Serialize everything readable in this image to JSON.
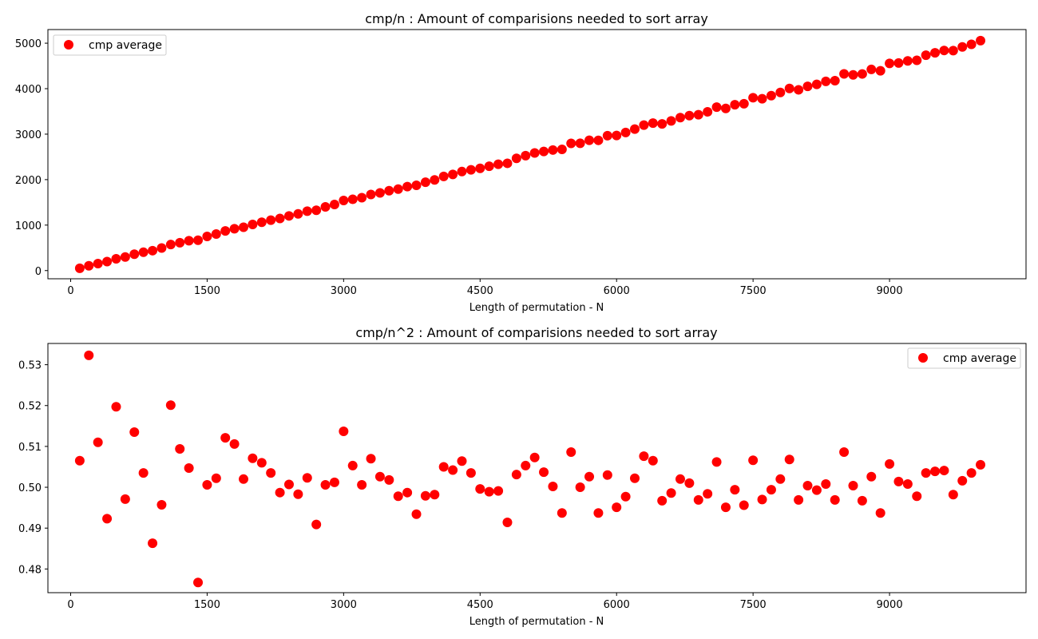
{
  "chart_data": [
    {
      "type": "scatter",
      "title": "cmp/n : Amount of comparisions needed to sort array",
      "xlabel": "Length of permutation - N",
      "ylabel": "",
      "xlim": [
        -250,
        10500
      ],
      "ylim": [
        -180,
        5300
      ],
      "xticks": [
        0,
        1500,
        3000,
        4500,
        6000,
        7500,
        9000
      ],
      "yticks": [
        0,
        1000,
        2000,
        3000,
        4000,
        5000
      ],
      "legend": "upper-left",
      "marker_color": "#ff0000",
      "series": [
        {
          "name": "cmp average",
          "x": [
            100,
            200,
            300,
            400,
            500,
            600,
            700,
            800,
            900,
            1000,
            1100,
            1200,
            1300,
            1400,
            1500,
            1600,
            1700,
            1800,
            1900,
            2000,
            2100,
            2200,
            2300,
            2400,
            2500,
            2600,
            2700,
            2800,
            2900,
            3000,
            3100,
            3200,
            3300,
            3400,
            3500,
            3600,
            3700,
            3800,
            3900,
            4000,
            4100,
            4200,
            4300,
            4400,
            4500,
            4600,
            4700,
            4800,
            4900,
            5000,
            5100,
            5200,
            5300,
            5400,
            5500,
            5600,
            5700,
            5800,
            5900,
            6000,
            6100,
            6200,
            6300,
            6400,
            6500,
            6600,
            6700,
            6800,
            6900,
            7000,
            7100,
            7200,
            7300,
            7400,
            7500,
            7600,
            7700,
            7800,
            7900,
            8000,
            8100,
            8200,
            8300,
            8400,
            8500,
            8600,
            8700,
            8800,
            8900,
            9000,
            9100,
            9200,
            9300,
            9400,
            9500,
            9600,
            9700,
            9800,
            9900,
            10000
          ],
          "y": [
            51,
            106,
            153,
            197,
            260,
            298,
            360,
            403,
            438,
            496,
            572,
            613,
            657,
            667,
            751,
            803,
            871,
            919,
            953,
            1014,
            1063,
            1108,
            1147,
            1202,
            1246,
            1306,
            1326,
            1401,
            1453,
            1541,
            1567,
            1602,
            1673,
            1709,
            1757,
            1792,
            1847,
            1875,
            1942,
            1993,
            2071,
            2114,
            2177,
            2215,
            2248,
            2295,
            2338,
            2359,
            2467,
            2527,
            2587,
            2619,
            2651,
            2666,
            2797,
            2800,
            2865,
            2864,
            2966,
            2970,
            3036,
            3111,
            3199,
            3242,
            3226,
            3291,
            3363,
            3407,
            3427,
            3490,
            3594,
            3565,
            3646,
            3669,
            3800,
            3778,
            3846,
            3916,
            4005,
            3975,
            4050,
            4094,
            4160,
            4175,
            4325,
            4303,
            4324,
            4423,
            4393,
            4555,
            4564,
            4610,
            4624,
            4735,
            4788,
            4840,
            4837,
            4918,
            4975,
            5056
          ]
        }
      ]
    },
    {
      "type": "scatter",
      "title": "cmp/n^2 : Amount of comparisions needed to sort array",
      "xlabel": "Length of permutation - N",
      "ylabel": "",
      "xlim": [
        -250,
        10500
      ],
      "ylim": [
        0.4742,
        0.5352
      ],
      "xticks": [
        0,
        1500,
        3000,
        4500,
        6000,
        7500,
        9000
      ],
      "yticks": [
        0.48,
        0.49,
        0.5,
        0.51,
        0.52,
        0.53
      ],
      "legend": "upper-right",
      "marker_color": "#ff0000",
      "series": [
        {
          "name": "cmp average",
          "x": [
            100,
            200,
            300,
            400,
            500,
            600,
            700,
            800,
            900,
            1000,
            1100,
            1200,
            1300,
            1400,
            1500,
            1600,
            1700,
            1800,
            1900,
            2000,
            2100,
            2200,
            2300,
            2400,
            2500,
            2600,
            2700,
            2800,
            2900,
            3000,
            3100,
            3200,
            3300,
            3400,
            3500,
            3600,
            3700,
            3800,
            3900,
            4000,
            4100,
            4200,
            4300,
            4400,
            4500,
            4600,
            4700,
            4800,
            4900,
            5000,
            5100,
            5200,
            5300,
            5400,
            5500,
            5600,
            5700,
            5800,
            5900,
            6000,
            6100,
            6200,
            6300,
            6400,
            6500,
            6600,
            6700,
            6800,
            6900,
            7000,
            7100,
            7200,
            7300,
            7400,
            7500,
            7600,
            7700,
            7800,
            7900,
            8000,
            8100,
            8200,
            8300,
            8400,
            8500,
            8600,
            8700,
            8800,
            8900,
            9000,
            9100,
            9200,
            9300,
            9400,
            9500,
            9600,
            9700,
            9800,
            9900,
            10000
          ],
          "y": [
            0.5065,
            0.5323,
            0.511,
            0.4923,
            0.5197,
            0.4971,
            0.5135,
            0.5035,
            0.4863,
            0.4957,
            0.5201,
            0.5094,
            0.5047,
            0.4767,
            0.5006,
            0.5022,
            0.5121,
            0.5106,
            0.502,
            0.5071,
            0.506,
            0.5035,
            0.4987,
            0.5007,
            0.4983,
            0.5023,
            0.4909,
            0.5006,
            0.5012,
            0.5137,
            0.5053,
            0.5006,
            0.507,
            0.5026,
            0.5018,
            0.4978,
            0.4987,
            0.4934,
            0.4979,
            0.4982,
            0.505,
            0.5042,
            0.5064,
            0.5035,
            0.4996,
            0.4989,
            0.4991,
            0.4914,
            0.5031,
            0.5053,
            0.5073,
            0.5037,
            0.5002,
            0.4937,
            0.5086,
            0.5,
            0.5026,
            0.4937,
            0.503,
            0.4951,
            0.4977,
            0.5022,
            0.5076,
            0.5065,
            0.4967,
            0.4986,
            0.502,
            0.501,
            0.4969,
            0.4984,
            0.5062,
            0.4951,
            0.4994,
            0.4956,
            0.5066,
            0.497,
            0.4994,
            0.502,
            0.5068,
            0.4969,
            0.5004,
            0.4993,
            0.5008,
            0.4969,
            0.5086,
            0.5004,
            0.4967,
            0.5026,
            0.4937,
            0.5057,
            0.5014,
            0.5008,
            0.4978,
            0.5035,
            0.5039,
            0.5041,
            0.4982,
            0.5016,
            0.5035,
            0.5055
          ]
        }
      ]
    }
  ]
}
